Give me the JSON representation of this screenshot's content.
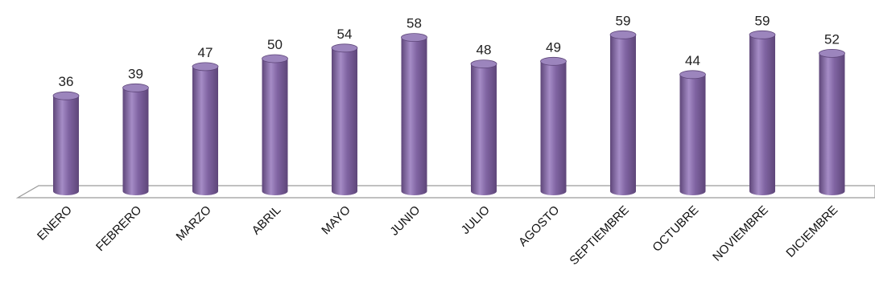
{
  "chart_data": {
    "type": "bar",
    "style": "3d-cylinder",
    "categories": [
      "ENERO",
      "FEBRERO",
      "MARZO",
      "ABRIL",
      "MAYO",
      "JUNIO",
      "JULIO",
      "AGOSTO",
      "SEPTIEMBRE",
      "OCTUBRE",
      "NOVIEMBRE",
      "DICIEMBRE"
    ],
    "values": [
      36,
      39,
      47,
      50,
      54,
      58,
      48,
      49,
      59,
      44,
      59,
      52
    ],
    "data_labels": [
      "36",
      "39",
      "47",
      "50",
      "54",
      "58",
      "48",
      "49",
      "59",
      "44",
      "59",
      "52"
    ],
    "title": "",
    "xlabel": "",
    "ylabel": "",
    "ylim": [
      0,
      60
    ],
    "grid": false,
    "legend": "none",
    "colors": {
      "bar_main": "#8064a2",
      "bar_light": "#a58cc6",
      "bar_dark": "#5e4679",
      "bar_top": "#9c85bd",
      "floor_stroke": "#9a9a9a"
    }
  }
}
